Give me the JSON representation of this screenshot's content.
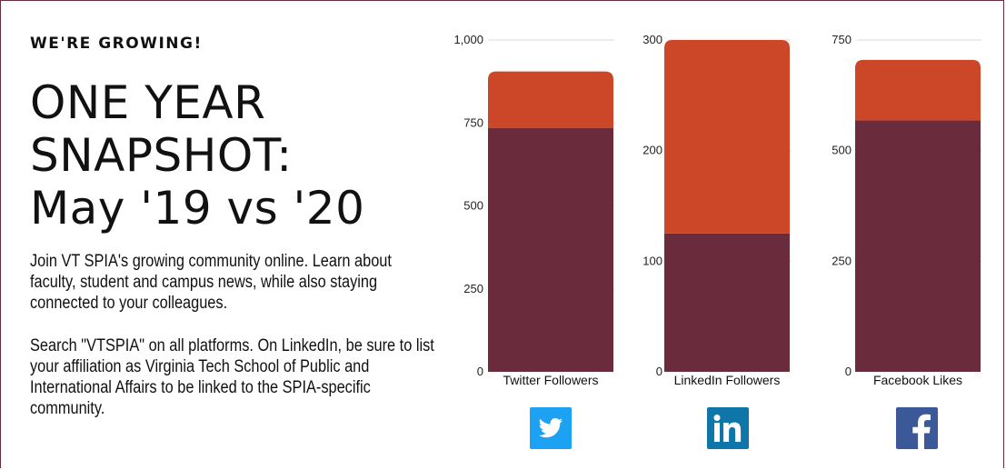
{
  "header": {
    "kicker": "WE'RE GROWING!",
    "title_lines": [
      "ONE YEAR",
      "SNAPSHOT:",
      "May '19 vs '20"
    ]
  },
  "body": {
    "paragraph1": "Join VT SPIA's growing community online. Learn about faculty, student and campus news, while also staying connected to your colleagues.",
    "paragraph2": "Search \"VTSPIA\" on all platforms. On LinkedIn, be sure to list your affiliation as Virginia Tech School of Public and International Affairs to be linked to the SPIA-specific community."
  },
  "colors": {
    "may19": "#6a2c3d",
    "growth": "#cc4628",
    "twitter": "#1da1f2",
    "linkedin": "#0e76a8",
    "facebook": "#3b5998",
    "border": "#6b2d3c"
  },
  "chart_data": [
    {
      "type": "bar",
      "stacked": true,
      "category": "Twitter Followers",
      "ylim": [
        0,
        1000
      ],
      "ticks": [
        0,
        250,
        500,
        750,
        1000
      ],
      "tick_labels": [
        "0",
        "250",
        "500",
        "750",
        "1,000"
      ],
      "series": [
        {
          "values": [
            735
          ]
        },
        {
          "values": [
            170
          ]
        }
      ],
      "icon": "twitter-icon"
    },
    {
      "type": "bar",
      "stacked": true,
      "category": "LinkedIn Followers",
      "ylim": [
        0,
        300
      ],
      "ticks": [
        0,
        100,
        200,
        300
      ],
      "tick_labels": [
        "0",
        "100",
        "200",
        "300"
      ],
      "series": [
        {
          "values": [
            125
          ]
        },
        {
          "values": [
            175
          ]
        }
      ],
      "icon": "linkedin-icon"
    },
    {
      "type": "bar",
      "stacked": true,
      "category": "Facebook Likes",
      "ylim": [
        0,
        750
      ],
      "ticks": [
        0,
        250,
        500,
        750
      ],
      "tick_labels": [
        "0",
        "250",
        "500",
        "750"
      ],
      "series": [
        {
          "values": [
            568
          ]
        },
        {
          "values": [
            137
          ]
        }
      ],
      "icon": "facebook-icon"
    }
  ]
}
